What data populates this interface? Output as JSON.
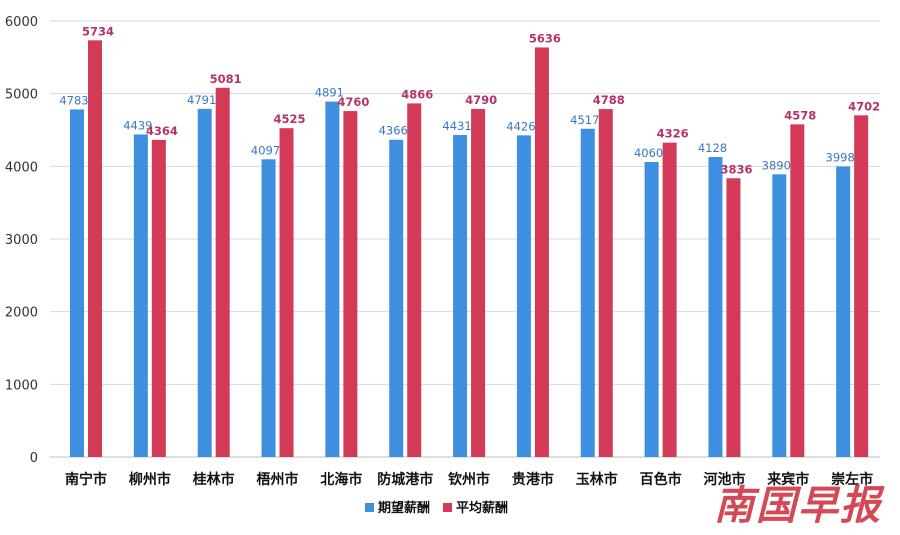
{
  "chart_data": {
    "type": "bar",
    "categories": [
      "南宁市",
      "柳州市",
      "桂林市",
      "梧州市",
      "北海市",
      "防城港市",
      "钦州市",
      "贵港市",
      "玉林市",
      "百色市",
      "河池市",
      "来宾市",
      "崇左市"
    ],
    "series": [
      {
        "name": "期望薪酬",
        "color": "#3f8fe0",
        "label_color": "#3a78c0",
        "values": [
          4783,
          4439,
          4791,
          4097,
          4891,
          4366,
          4431,
          4426,
          4517,
          4060,
          4128,
          3890,
          3998
        ]
      },
      {
        "name": "平均薪酬",
        "color": "#d23a58",
        "label_color": "#b5336a",
        "values": [
          5734,
          4364,
          5081,
          4525,
          4760,
          4866,
          4790,
          5636,
          4788,
          4326,
          3836,
          4578,
          4702
        ]
      }
    ],
    "yticks": [
      "0",
      "1000",
      "2000",
      "3000",
      "4000",
      "5000",
      "6000"
    ],
    "ylim": [
      0,
      6000
    ],
    "grid": true,
    "legend_position": "bottom-center",
    "watermark": "南国早报"
  }
}
